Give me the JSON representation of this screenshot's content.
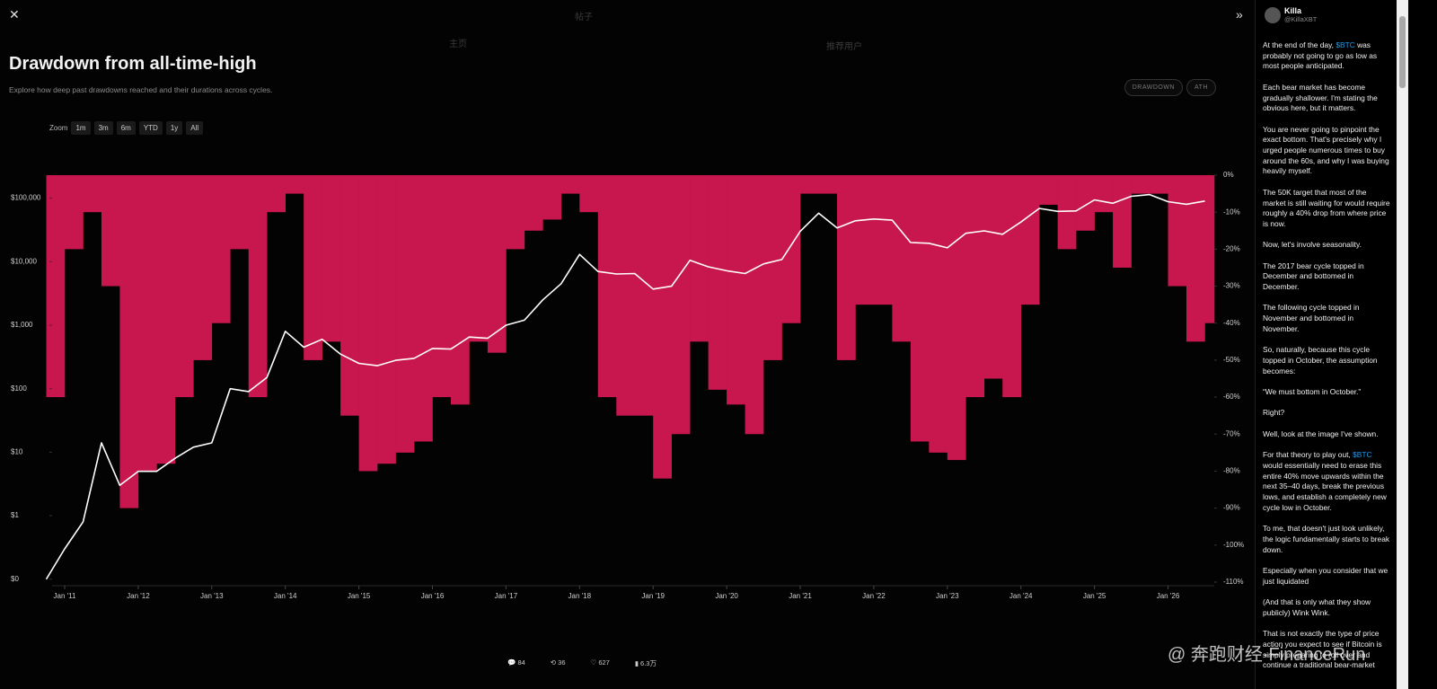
{
  "overlay": {
    "title": "Drawdown from all-time-high",
    "subtitle": "Explore how deep past drawdowns reached and their durations across cycles.",
    "toggles": [
      "DRAWDOWN",
      "ATH"
    ],
    "zoom_label": "Zoom",
    "zoom_options": [
      "1m",
      "3m",
      "6m",
      "YTD",
      "1y",
      "All"
    ]
  },
  "background": {
    "nav_home": "主页",
    "post_header": "帖子",
    "suggested": "推荐用户"
  },
  "chart_data": {
    "type": "line",
    "x": [
      "2010-10",
      "2011-01",
      "2011-04",
      "2011-07",
      "2011-10",
      "2012-01",
      "2012-04",
      "2012-07",
      "2012-10",
      "2013-01",
      "2013-04",
      "2013-07",
      "2013-10",
      "2014-01",
      "2014-04",
      "2014-07",
      "2014-10",
      "2015-01",
      "2015-04",
      "2015-07",
      "2015-10",
      "2016-01",
      "2016-04",
      "2016-07",
      "2016-10",
      "2017-01",
      "2017-04",
      "2017-07",
      "2017-10",
      "2018-01",
      "2018-04",
      "2018-07",
      "2018-10",
      "2019-01",
      "2019-04",
      "2019-07",
      "2019-10",
      "2020-01",
      "2020-04",
      "2020-07",
      "2020-10",
      "2021-01",
      "2021-04",
      "2021-07",
      "2021-10",
      "2022-01",
      "2022-04",
      "2022-07",
      "2022-10",
      "2023-01",
      "2023-04",
      "2023-07",
      "2023-10",
      "2024-01",
      "2024-04",
      "2024-07",
      "2024-10",
      "2025-01",
      "2025-04",
      "2025-07",
      "2025-10",
      "2026-01",
      "2026-04",
      "2026-07"
    ],
    "series": [
      {
        "color": "#ffffff",
        "values": [
          0.1,
          0.3,
          0.8,
          14,
          3,
          5,
          5,
          8,
          12,
          14,
          100,
          90,
          150,
          800,
          450,
          600,
          350,
          250,
          230,
          280,
          300,
          430,
          420,
          650,
          620,
          1000,
          1200,
          2500,
          4500,
          13000,
          7000,
          6400,
          6500,
          3700,
          4100,
          10500,
          8300,
          7200,
          6500,
          9200,
          10800,
          30000,
          58000,
          34000,
          44000,
          47000,
          45000,
          20000,
          19500,
          16500,
          28000,
          30500,
          27000,
          42000,
          69000,
          62000,
          63000,
          94000,
          83000,
          107000,
          114000,
          88000,
          80000,
          90000
        ]
      },
      {
        "color": "#c8174e",
        "axis": "y2",
        "kind": "bar",
        "values": [
          -60,
          -20,
          -10,
          -30,
          -90,
          -80,
          -78,
          -60,
          -50,
          -40,
          -20,
          -60,
          -10,
          -5,
          -50,
          -45,
          -65,
          -80,
          -78,
          -75,
          -72,
          -60,
          -62,
          -45,
          -48,
          -20,
          -15,
          -12,
          -5,
          -10,
          -60,
          -65,
          -65,
          -82,
          -70,
          -45,
          -58,
          -62,
          -70,
          -50,
          -40,
          -5,
          -5,
          -50,
          -35,
          -35,
          -45,
          -72,
          -75,
          -77,
          -60,
          -55,
          -60,
          -35,
          -8,
          -20,
          -15,
          -10,
          -25,
          -5,
          -5,
          -30,
          -45,
          -40
        ]
      }
    ],
    "log": true,
    "ylim": [
      0.09,
      230000
    ],
    "yticks": [
      {
        "value": 0.1,
        "label": "$0"
      },
      {
        "value": 1,
        "label": "$1"
      },
      {
        "value": 10,
        "label": "$10"
      },
      {
        "value": 100,
        "label": "$100"
      },
      {
        "value": 1000,
        "label": "$1,000"
      },
      {
        "value": 10000,
        "label": "$10,000"
      },
      {
        "value": 100000,
        "label": "$100,000"
      }
    ],
    "y2lim": [
      -110,
      0
    ],
    "y2ticks": [
      {
        "value": 0,
        "label": "0%"
      },
      {
        "value": -10,
        "label": "-10%"
      },
      {
        "value": -20,
        "label": "-20%"
      },
      {
        "value": -30,
        "label": "-30%"
      },
      {
        "value": -40,
        "label": "-40%"
      },
      {
        "value": -50,
        "label": "-50%"
      },
      {
        "value": -60,
        "label": "-60%"
      },
      {
        "value": -70,
        "label": "-70%"
      },
      {
        "value": -80,
        "label": "-80%"
      },
      {
        "value": -90,
        "label": "-90%"
      },
      {
        "value": -100,
        "label": "-100%"
      },
      {
        "value": -110,
        "label": "-110%"
      }
    ],
    "xticks": [
      {
        "value": "2011-01",
        "label": "Jan '11"
      },
      {
        "value": "2012-01",
        "label": "Jan '12"
      },
      {
        "value": "2013-01",
        "label": "Jan '13"
      },
      {
        "value": "2014-01",
        "label": "Jan '14"
      },
      {
        "value": "2015-01",
        "label": "Jan '15"
      },
      {
        "value": "2016-01",
        "label": "Jan '16"
      },
      {
        "value": "2017-01",
        "label": "Jan '17"
      },
      {
        "value": "2018-01",
        "label": "Jan '18"
      },
      {
        "value": "2019-01",
        "label": "Jan '19"
      },
      {
        "value": "2020-01",
        "label": "Jan '20"
      },
      {
        "value": "2021-01",
        "label": "Jan '21"
      },
      {
        "value": "2022-01",
        "label": "Jan '22"
      },
      {
        "value": "2023-01",
        "label": "Jan '23"
      },
      {
        "value": "2024-01",
        "label": "Jan '24"
      },
      {
        "value": "2025-01",
        "label": "Jan '25"
      },
      {
        "value": "2026-01",
        "label": "Jan '26"
      }
    ]
  },
  "tweet": {
    "name": "Killa",
    "handle": "@KillaXBT",
    "paragraphs": [
      [
        "At the end of the day, ",
        "$BTC",
        " was probably not going to go as low as most people anticipated."
      ],
      [
        "Each bear market has become gradually shallower. I'm stating the obvious here, but it matters."
      ],
      [
        "You are never going to pinpoint the exact bottom. That's precisely why I urged people numerous times to buy around the 60s, and why I was buying heavily myself."
      ],
      [
        "The 50K target that most of the market is still waiting for would require roughly a 40% drop from where price is now."
      ],
      [
        "Now, let's involve seasonality."
      ],
      [
        "The 2017 bear cycle topped in December and bottomed in December."
      ],
      [
        "The following cycle topped in November and bottomed in November."
      ],
      [
        "So, naturally, because this cycle topped in October, the assumption becomes:"
      ],
      [
        "“We must bottom in October.”"
      ],
      [
        "Right?"
      ],
      [
        "Well, look at the image I've shown."
      ],
      [
        "For that theory to play out, ",
        "$BTC",
        " would essentially need to erase this entire 40% move upwards within the next 35–40 days, break the previous lows, and establish a completely new cycle low in October."
      ],
      [
        "To me, that doesn't just look unlikely, the logic fundamentally starts to break down."
      ],
      [
        "Especially when you consider that we just liquidated"
      ],
      [
        "(And that is only what they show publicly) Wink Wink."
      ],
      [
        "That is not exactly the type of price action you expect to see if Bitcoin is simply preparing to roll over and continue a traditional bear-market"
      ]
    ],
    "stats": {
      "replies": 84,
      "reposts": 36,
      "likes": 627,
      "views": "6.3万"
    }
  },
  "watermark": "@ 奔跑财经·FinanceRun"
}
